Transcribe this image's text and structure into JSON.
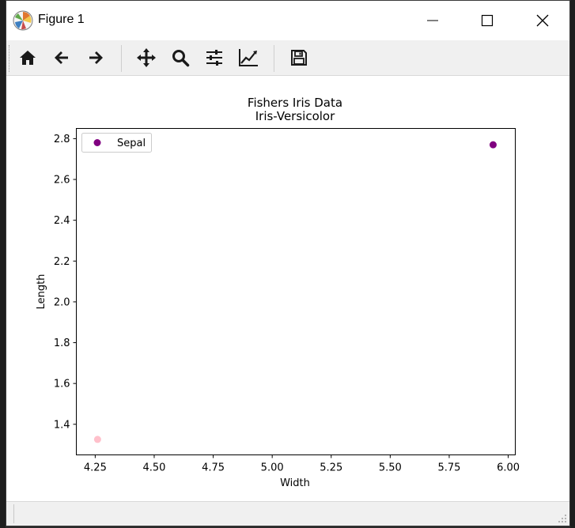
{
  "window": {
    "title": "Figure 1"
  },
  "toolbar": {
    "tools": [
      "home-icon",
      "back-arrow-icon",
      "forward-arrow-icon",
      "pan-icon",
      "zoom-icon",
      "configure-subplots-icon",
      "edit-axis-icon",
      "save-icon"
    ]
  },
  "chart_data": {
    "type": "scatter",
    "title": "Fishers Iris Data",
    "subtitle": "Iris-Versicolor",
    "xlabel": "Width",
    "ylabel": "Length",
    "xlim": [
      4.17,
      6.03
    ],
    "ylim": [
      1.25,
      2.85
    ],
    "xticks": [
      4.25,
      4.5,
      4.75,
      5.0,
      5.25,
      5.5,
      5.75,
      6.0
    ],
    "xtick_labels": [
      "4.25",
      "4.50",
      "4.75",
      "5.00",
      "5.25",
      "5.50",
      "5.75",
      "6.00"
    ],
    "yticks": [
      1.4,
      1.6,
      1.8,
      2.0,
      2.2,
      2.4,
      2.6,
      2.8
    ],
    "ytick_labels": [
      "1.4",
      "1.6",
      "1.8",
      "2.0",
      "2.2",
      "2.4",
      "2.6",
      "2.8"
    ],
    "legend": "top-left",
    "grid": false,
    "series": [
      {
        "name": "Sepal",
        "color": "#800080",
        "points": [
          {
            "x": 5.936,
            "y": 2.77
          }
        ]
      },
      {
        "color": "#ffc0cb",
        "points": [
          {
            "x": 4.26,
            "y": 1.326
          }
        ]
      }
    ]
  }
}
